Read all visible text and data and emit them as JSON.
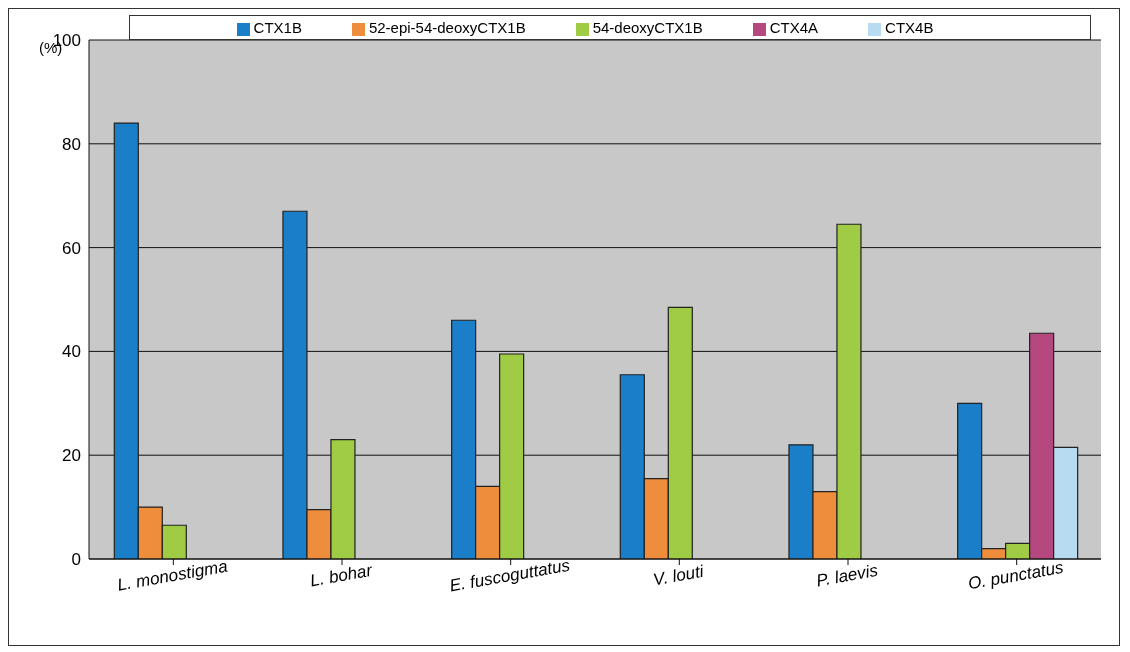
{
  "chart_data": {
    "type": "bar",
    "ylabel": "(%)",
    "categories": [
      "L. monostigma",
      "L. bohar",
      "E. fuscoguttatus",
      "V. louti",
      "P. laevis",
      "O. punctatus"
    ],
    "series": [
      {
        "name": "CTX1B",
        "color": "#1a7fc8",
        "values": [
          84,
          67,
          46,
          35.5,
          22,
          30
        ]
      },
      {
        "name": "52-epi-54-deoxyCTX1B",
        "color": "#ee8d3c",
        "values": [
          10,
          9.5,
          14,
          15.5,
          13,
          2
        ]
      },
      {
        "name": "54-deoxyCTX1B",
        "color": "#9fcc44",
        "values": [
          6.5,
          23,
          39.5,
          48.5,
          64.5,
          3
        ]
      },
      {
        "name": "CTX4A",
        "color": "#b5487e",
        "values": [
          null,
          null,
          null,
          null,
          null,
          43.5
        ]
      },
      {
        "name": "CTX4B",
        "color": "#b7dcf2",
        "values": [
          null,
          null,
          null,
          null,
          null,
          21.5
        ]
      }
    ],
    "ylim": [
      0,
      100
    ],
    "yticks": [
      0,
      20,
      40,
      60,
      80,
      100
    ],
    "grid": "y",
    "legend": "top"
  }
}
